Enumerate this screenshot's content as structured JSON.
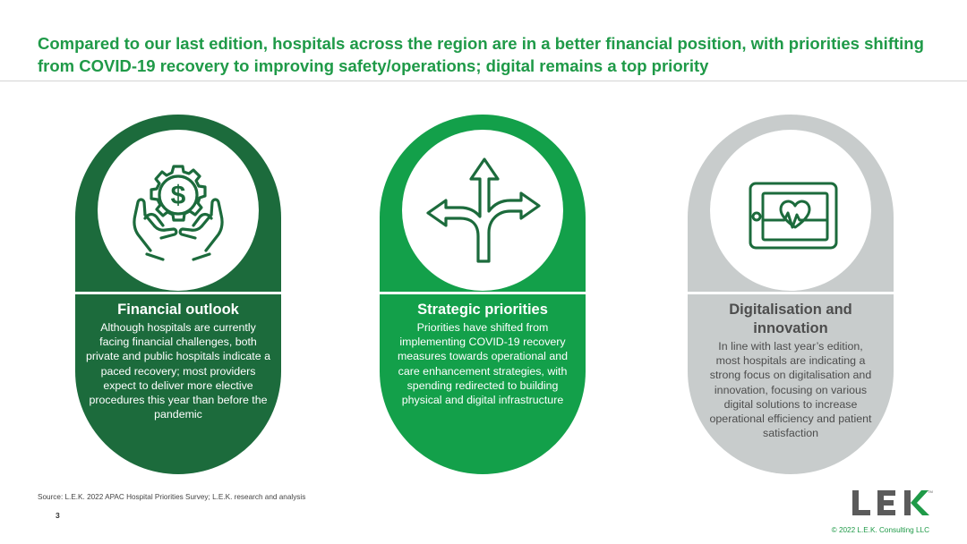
{
  "headline": "Compared to our last edition, hospitals across the region are in a better financial position, with priorities shifting from COVID-19 recovery to improving safety/operations; digital remains a top priority",
  "pillars": [
    {
      "icon": "hands-dollar-gear-icon",
      "title": "Financial outlook",
      "body": "Although hospitals are currently facing financial challenges, both private and public hospitals indicate a paced recovery; most providers expect to deliver more elective procedures this year than before the pandemic",
      "color": "#1c6b3c"
    },
    {
      "icon": "diverging-arrows-icon",
      "title": "Strategic priorities",
      "body": "Priorities have shifted from implementing COVID-19 recovery measures towards operational and care enhancement strategies, with spending redirected to building physical and digital infrastructure",
      "color": "#13a04a"
    },
    {
      "icon": "heart-monitor-tablet-icon",
      "title": "Digitalisation and innovation",
      "body": "In line with last year’s edition, most hospitals are indicating a strong focus on digitalisation and innovation, focusing on various digital solutions to increase operational efficiency and patient satisfaction",
      "color": "#c8cccc"
    }
  ],
  "footer": {
    "source": "Source:  L.E.K. 2022 APAC Hospital Priorities Survey; L.E.K. research and analysis",
    "page_number": "3",
    "logo_text": "LEK",
    "trademark": "TM",
    "copyright": "© 2022 L.E.K. Consulting LLC"
  },
  "colors": {
    "brand_green": "#1f9a48",
    "dark_green": "#1c6b3c",
    "bright_green": "#13a04a",
    "grey": "#c8cccc"
  }
}
